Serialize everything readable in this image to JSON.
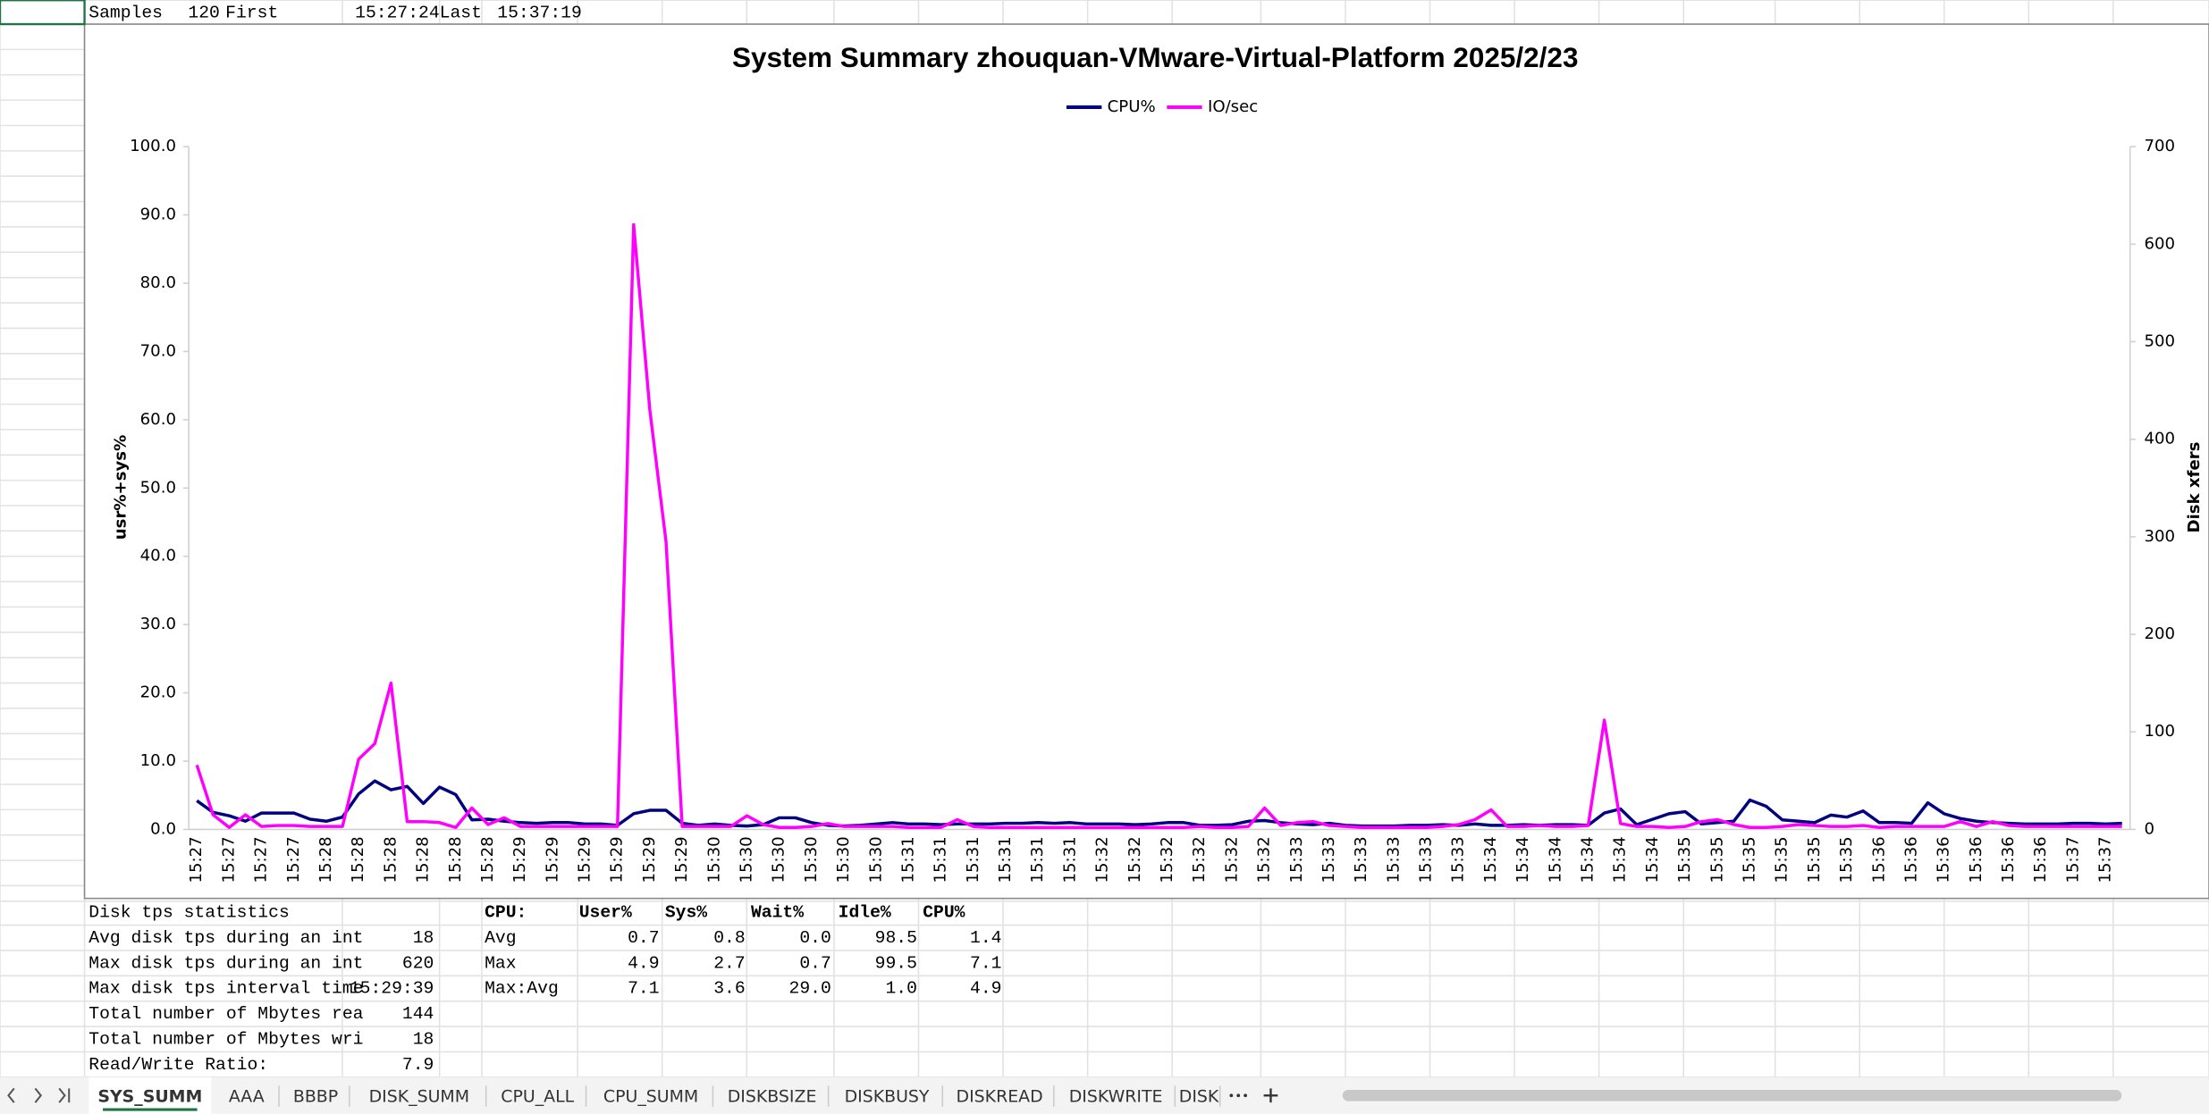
{
  "header": {
    "samples_label": "Samples",
    "samples": "120",
    "first_label": "First",
    "first": "15:27:24",
    "last_label": "Last",
    "last": "15:37:19"
  },
  "chart_data": {
    "type": "line",
    "title": "System Summary zhouquan-VMware-Virtual-Platform  2025/2/23",
    "y_label": "usr%+sys%",
    "y2_label": "Disk xfers",
    "categories": [
      "15:27",
      null,
      "15:27",
      null,
      "15:27",
      null,
      "15:27",
      null,
      "15:28",
      null,
      "15:28",
      null,
      "15:28",
      null,
      "15:28",
      null,
      "15:28",
      null,
      "15:28",
      null,
      "15:29",
      null,
      "15:29",
      null,
      "15:29",
      null,
      "15:29",
      null,
      "15:29",
      null,
      "15:29",
      null,
      "15:30",
      null,
      "15:30",
      null,
      "15:30",
      null,
      "15:30",
      null,
      "15:30",
      null,
      "15:30",
      null,
      "15:31",
      null,
      "15:31",
      null,
      "15:31",
      null,
      "15:31",
      null,
      "15:31",
      null,
      "15:31",
      null,
      "15:32",
      null,
      "15:32",
      null,
      "15:32",
      null,
      "15:32",
      null,
      "15:32",
      null,
      "15:32",
      null,
      "15:33",
      null,
      "15:33",
      null,
      "15:33",
      null,
      "15:33",
      null,
      "15:33",
      null,
      "15:33",
      null,
      "15:34",
      null,
      "15:34",
      null,
      "15:34",
      null,
      "15:34",
      null,
      "15:34",
      null,
      "15:34",
      null,
      "15:35",
      null,
      "15:35",
      null,
      "15:35",
      null,
      "15:35",
      null,
      "15:35",
      null,
      "15:35",
      null,
      "15:36",
      null,
      "15:36",
      null,
      "15:36",
      null,
      "15:36",
      null,
      "15:36",
      null,
      "15:36",
      null,
      "15:37",
      null,
      "15:37",
      null
    ],
    "series": [
      {
        "name": "CPU%",
        "color": "#000080",
        "values": [
          4.2,
          2.5,
          2.0,
          1.2,
          2.4,
          2.4,
          2.4,
          1.5,
          1.2,
          1.8,
          5.2,
          7.1,
          5.8,
          6.3,
          3.8,
          6.2,
          5.1,
          1.4,
          1.5,
          1.2,
          1.0,
          0.9,
          1.0,
          1.0,
          0.8,
          0.8,
          0.6,
          2.3,
          2.8,
          2.8,
          0.9,
          0.6,
          0.8,
          0.6,
          0.5,
          0.7,
          1.7,
          1.7,
          1.0,
          0.6,
          0.5,
          0.6,
          0.8,
          1.0,
          0.8,
          0.8,
          0.7,
          0.8,
          0.8,
          0.8,
          0.9,
          0.9,
          1.0,
          0.9,
          1.0,
          0.8,
          0.8,
          0.8,
          0.7,
          0.8,
          1.0,
          1.0,
          0.6,
          0.6,
          0.7,
          1.2,
          1.3,
          1.0,
          0.8,
          0.7,
          0.9,
          0.6,
          0.5,
          0.5,
          0.5,
          0.6,
          0.6,
          0.7,
          0.6,
          0.8,
          0.6,
          0.6,
          0.7,
          0.6,
          0.7,
          0.7,
          0.6,
          2.4,
          3.0,
          0.7,
          1.5,
          2.3,
          2.6,
          0.8,
          1.0,
          1.2,
          4.3,
          3.4,
          1.4,
          1.2,
          1.0,
          2.1,
          1.8,
          2.7,
          1.0,
          1.0,
          0.9,
          3.9,
          2.3,
          1.6,
          1.2,
          1.0,
          0.9,
          0.8,
          0.8,
          0.8,
          0.9,
          0.9,
          0.8,
          0.9
        ]
      },
      {
        "name": "IO/sec",
        "color": "#ff00ff",
        "axis": "y2",
        "values": [
          66,
          15,
          2,
          15,
          3,
          4,
          4,
          3,
          3,
          3,
          72,
          88,
          150,
          8,
          8,
          7,
          2,
          22,
          5,
          12,
          3,
          3,
          3,
          3,
          3,
          3,
          3,
          620,
          430,
          295,
          3,
          3,
          3,
          3,
          14,
          5,
          2,
          2,
          3,
          6,
          3,
          3,
          3,
          3,
          2,
          2,
          2,
          10,
          3,
          2,
          2,
          2,
          2,
          2,
          2,
          2,
          2,
          2,
          2,
          2,
          2,
          2,
          3,
          2,
          2,
          3,
          22,
          4,
          7,
          8,
          4,
          3,
          2,
          2,
          2,
          2,
          2,
          3,
          5,
          10,
          20,
          3,
          3,
          4,
          3,
          3,
          4,
          112,
          6,
          3,
          3,
          2,
          3,
          8,
          10,
          5,
          2,
          2,
          3,
          5,
          4,
          3,
          3,
          4,
          2,
          3,
          3,
          3,
          3,
          8,
          3,
          8,
          4,
          3,
          3,
          3,
          3,
          3,
          3,
          3
        ]
      }
    ],
    "ylim": [
      0,
      100
    ],
    "yticks": [
      {
        "value": 0,
        "label": "0.0"
      },
      {
        "value": 10,
        "label": "10.0"
      },
      {
        "value": 20,
        "label": "20.0"
      },
      {
        "value": 30,
        "label": "30.0"
      },
      {
        "value": 40,
        "label": "40.0"
      },
      {
        "value": 50,
        "label": "50.0"
      },
      {
        "value": 60,
        "label": "60.0"
      },
      {
        "value": 70,
        "label": "70.0"
      },
      {
        "value": 80,
        "label": "80.0"
      },
      {
        "value": 90,
        "label": "90.0"
      },
      {
        "value": 100,
        "label": "100.0"
      }
    ],
    "y2lim": [
      0,
      700
    ],
    "y2ticks": [
      0,
      100,
      200,
      300,
      400,
      500,
      600,
      700
    ],
    "legend": "top",
    "grid": false
  },
  "disk_stats": {
    "title": "Disk tps statistics",
    "rows": [
      [
        "Avg disk tps during an int",
        "18"
      ],
      [
        "Max disk tps during an int",
        "620"
      ],
      [
        "Max disk tps interval time",
        "15:29:39"
      ],
      [
        "Total number of Mbytes rea",
        "144"
      ],
      [
        "Total number of Mbytes wri",
        "18"
      ],
      [
        "Read/Write Ratio:",
        "7.9"
      ]
    ]
  },
  "cpu_stats": {
    "header": [
      "CPU:",
      "User%",
      "Sys%",
      "Wait%",
      "Idle%",
      "CPU%"
    ],
    "rows": [
      [
        "Avg",
        "0.7",
        "0.8",
        "0.0",
        "98.5",
        "1.4"
      ],
      [
        "Max",
        "4.9",
        "2.7",
        "0.7",
        "99.5",
        "7.1"
      ],
      [
        "Max:Avg",
        "7.1",
        "3.6",
        "29.0",
        "1.0",
        "4.9"
      ]
    ]
  },
  "tabs": [
    "SYS_SUMM",
    "AAA",
    "BBBP",
    "DISK_SUMM",
    "CPU_ALL",
    "CPU_SUMM",
    "DISKBSIZE",
    "DISKBUSY",
    "DISKREAD",
    "DISKWRITE",
    "DISK"
  ]
}
